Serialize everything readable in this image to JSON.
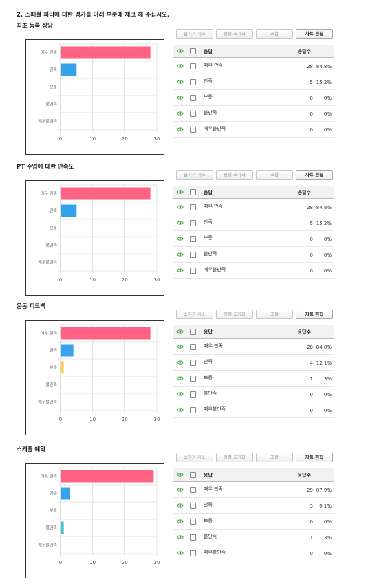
{
  "question": "2. 스페셜 피티에 대한 평가를 아래 부분에 체크 해 주십시오.",
  "toolbar": {
    "hide_cancel": "숨기기 취소",
    "sort_reset": "정렬 초기화",
    "combine": "조합",
    "edit_chart": "차트 편집"
  },
  "table_header": {
    "response": "응답",
    "count": "응답수"
  },
  "sections": [
    {
      "title": "최초 등록 상담",
      "rows": [
        {
          "label": "매우 만족",
          "count": "28",
          "pct": "84.8%"
        },
        {
          "label": "만족",
          "count": "5",
          "pct": "15.2%"
        },
        {
          "label": "보통",
          "count": "0",
          "pct": "0%"
        },
        {
          "label": "불만족",
          "count": "0",
          "pct": "0%"
        },
        {
          "label": "매우불만족",
          "count": "0",
          "pct": "0%"
        }
      ]
    },
    {
      "title": "PT 수업에 대한 만족도",
      "rows": [
        {
          "label": "매우 만족",
          "count": "28",
          "pct": "84.8%"
        },
        {
          "label": "만족",
          "count": "5",
          "pct": "15.2%"
        },
        {
          "label": "보통",
          "count": "0",
          "pct": "0%"
        },
        {
          "label": "불만족",
          "count": "0",
          "pct": "0%"
        },
        {
          "label": "매우불만족",
          "count": "0",
          "pct": "0%"
        }
      ]
    },
    {
      "title": "운동 피드백",
      "rows": [
        {
          "label": "매우 만족",
          "count": "28",
          "pct": "84.8%"
        },
        {
          "label": "만족",
          "count": "4",
          "pct": "12.1%"
        },
        {
          "label": "보통",
          "count": "1",
          "pct": "3%"
        },
        {
          "label": "불만족",
          "count": "0",
          "pct": "0%"
        },
        {
          "label": "매우불만족",
          "count": "0",
          "pct": "0%"
        }
      ]
    },
    {
      "title": "스케줄 예약",
      "rows": [
        {
          "label": "매우 만족",
          "count": "29",
          "pct": "87.9%"
        },
        {
          "label": "만족",
          "count": "3",
          "pct": "9.1%"
        },
        {
          "label": "보통",
          "count": "0",
          "pct": "0%"
        },
        {
          "label": "불만족",
          "count": "1",
          "pct": "3%"
        },
        {
          "label": "매우불만족",
          "count": "0",
          "pct": "0%"
        }
      ]
    }
  ],
  "chart_data": [
    {
      "type": "bar",
      "orientation": "horizontal",
      "categories": [
        "매우 만족",
        "만족",
        "보통",
        "불만족",
        "매우불만족"
      ],
      "values": [
        28,
        5,
        0,
        0,
        0
      ],
      "xlim": [
        0,
        30
      ],
      "xticks": [
        0,
        10,
        20,
        30
      ],
      "colors": [
        "#ff6384",
        "#36a2eb",
        "#ffcd56",
        "#4bc0c0",
        "#9966ff"
      ]
    },
    {
      "type": "bar",
      "orientation": "horizontal",
      "categories": [
        "매우 만족",
        "만족",
        "보통",
        "불만족",
        "매우불만족"
      ],
      "values": [
        28,
        5,
        0,
        0,
        0
      ],
      "xlim": [
        0,
        30
      ],
      "xticks": [
        0,
        10,
        20,
        30
      ],
      "colors": [
        "#ff6384",
        "#36a2eb",
        "#ffcd56",
        "#4bc0c0",
        "#9966ff"
      ]
    },
    {
      "type": "bar",
      "orientation": "horizontal",
      "categories": [
        "매우 만족",
        "만족",
        "보통",
        "불만족",
        "매우불만족"
      ],
      "values": [
        28,
        4,
        1,
        0,
        0
      ],
      "xlim": [
        0,
        30
      ],
      "xticks": [
        0,
        10,
        20,
        30
      ],
      "colors": [
        "#ff6384",
        "#36a2eb",
        "#ffcd56",
        "#4bc0c0",
        "#9966ff"
      ]
    },
    {
      "type": "bar",
      "orientation": "horizontal",
      "categories": [
        "매우 만족",
        "만족",
        "보통",
        "불만족",
        "매우불만족"
      ],
      "values": [
        29,
        3,
        0,
        1,
        0
      ],
      "xlim": [
        0,
        30
      ],
      "xticks": [
        0,
        10,
        20,
        30
      ],
      "colors": [
        "#ff6384",
        "#36a2eb",
        "#ffcd56",
        "#4bc0c0",
        "#9966ff"
      ]
    }
  ],
  "icons": {
    "visibility": "eye-icon",
    "select": "checkbox"
  },
  "accent_colors": {
    "eye": "#3aa83a"
  }
}
